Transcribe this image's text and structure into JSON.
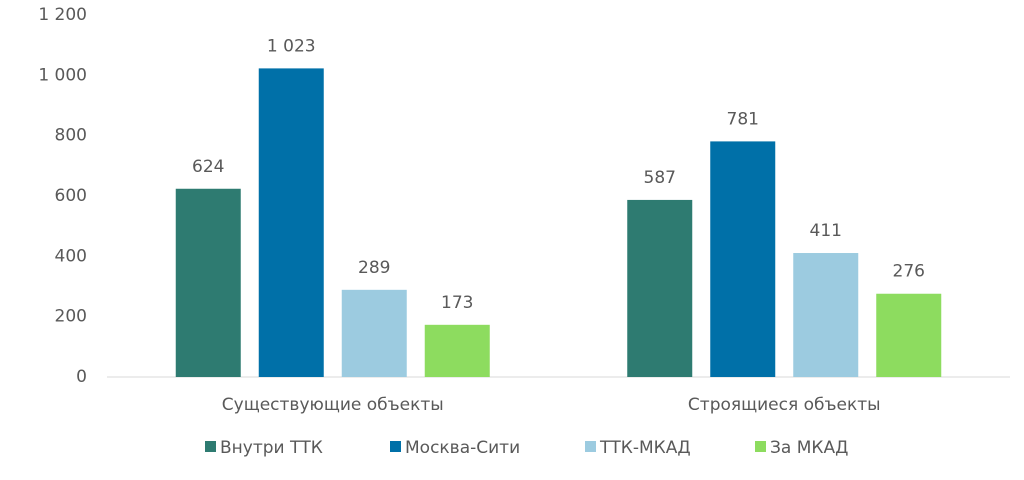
{
  "chart_data": {
    "type": "bar",
    "categories": [
      "Существующие объекты",
      "Строящиеся объекты"
    ],
    "series": [
      {
        "name": "Внутри ТТК",
        "color": "#2e7b71",
        "values": [
          624,
          587
        ]
      },
      {
        "name": "Москва-Сити",
        "color": "#0070a8",
        "values": [
          1023,
          781
        ],
        "value_labels": [
          "1 023",
          "781"
        ]
      },
      {
        "name": "ТТК-МКАД",
        "color": "#9ccbe0",
        "values": [
          289,
          411
        ]
      },
      {
        "name": "За МКАД",
        "color": "#8ddc5f",
        "values": [
          173,
          276
        ]
      }
    ],
    "ylim": [
      0,
      1200
    ],
    "yticks": [
      0,
      200,
      400,
      600,
      800,
      {
        "value": 1000,
        "label": "1 000"
      },
      {
        "value": 1200,
        "label": "1 200"
      }
    ],
    "grid": false,
    "legend": "bottom"
  }
}
